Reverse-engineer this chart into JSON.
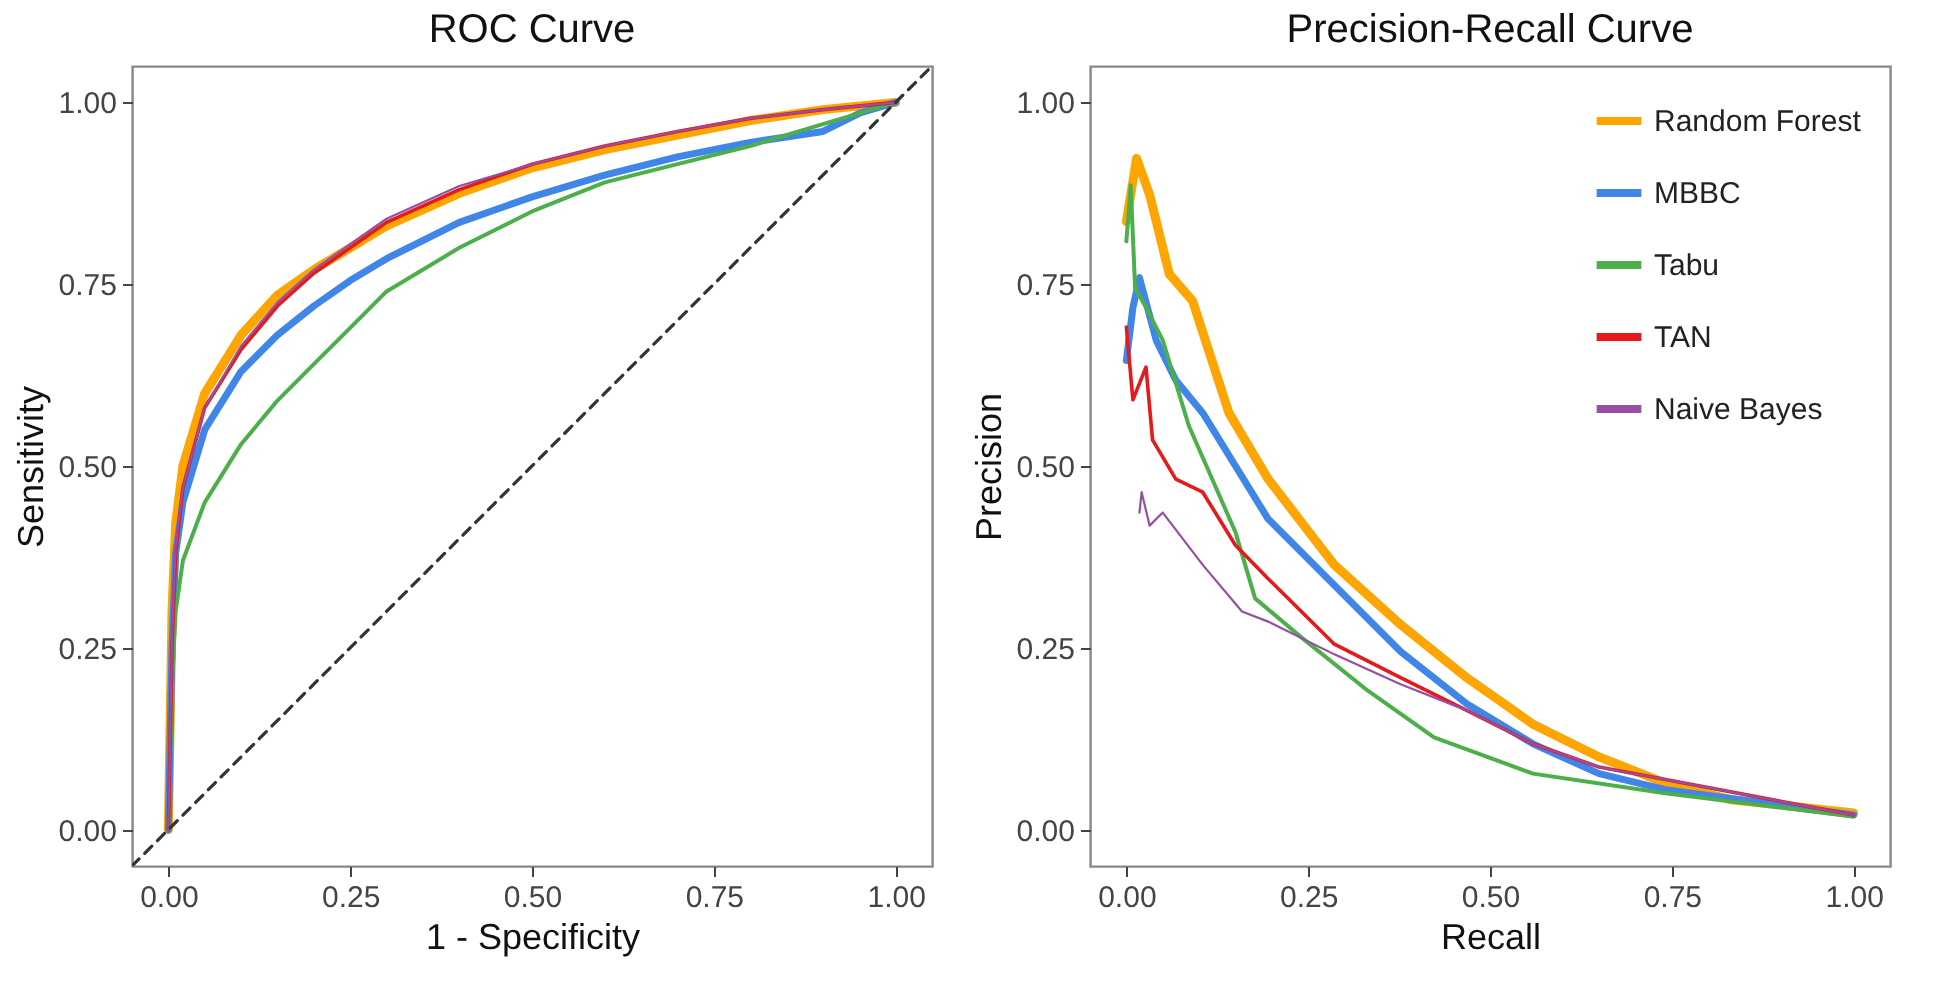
{
  "chart_data": [
    {
      "type": "line",
      "title": "ROC Curve",
      "xlabel": "1 - Specificity",
      "ylabel": "Sensitivity",
      "xlim": [
        -0.05,
        1.05
      ],
      "ylim": [
        -0.05,
        1.05
      ],
      "xticks": [
        {
          "value": 0,
          "label": "0.00"
        },
        {
          "value": 0.25,
          "label": "0.25"
        },
        {
          "value": 0.5,
          "label": "0.50"
        },
        {
          "value": 0.75,
          "label": "0.75"
        },
        {
          "value": 1,
          "label": "1.00"
        }
      ],
      "yticks": [
        {
          "value": 0,
          "label": "0.00"
        },
        {
          "value": 0.25,
          "label": "0.25"
        },
        {
          "value": 0.5,
          "label": "0.50"
        },
        {
          "value": 0.75,
          "label": "0.75"
        },
        {
          "value": 1,
          "label": "1.00"
        }
      ],
      "grid": false,
      "legend": false,
      "series": [
        {
          "color": "#ffa500",
          "x": [
            0,
            0.005,
            0.01,
            0.02,
            0.05,
            0.1,
            0.15,
            0.2,
            0.25,
            0.3,
            0.4,
            0.5,
            0.6,
            0.7,
            0.8,
            0.9,
            1
          ],
          "values": [
            0,
            0.3,
            0.42,
            0.5,
            0.6,
            0.68,
            0.735,
            0.77,
            0.8,
            0.83,
            0.875,
            0.91,
            0.935,
            0.955,
            0.975,
            0.99,
            1
          ]
        },
        {
          "color": "#3f86e8",
          "x": [
            0,
            0.005,
            0.01,
            0.02,
            0.05,
            0.1,
            0.15,
            0.2,
            0.25,
            0.3,
            0.4,
            0.5,
            0.6,
            0.7,
            0.8,
            0.9,
            0.95,
            1
          ],
          "values": [
            0,
            0.25,
            0.38,
            0.45,
            0.55,
            0.63,
            0.68,
            0.72,
            0.755,
            0.785,
            0.835,
            0.87,
            0.9,
            0.925,
            0.945,
            0.96,
            0.985,
            1
          ]
        },
        {
          "color": "#4daf4a",
          "x": [
            0,
            0.005,
            0.01,
            0.02,
            0.05,
            0.1,
            0.15,
            0.2,
            0.25,
            0.3,
            0.4,
            0.5,
            0.6,
            0.7,
            0.8,
            0.9,
            1
          ],
          "values": [
            0,
            0.2,
            0.3,
            0.37,
            0.45,
            0.53,
            0.59,
            0.64,
            0.69,
            0.74,
            0.8,
            0.85,
            0.89,
            0.915,
            0.94,
            0.97,
            1
          ]
        },
        {
          "color": "#e41a1c",
          "x": [
            0,
            0.005,
            0.01,
            0.02,
            0.05,
            0.1,
            0.15,
            0.2,
            0.25,
            0.3,
            0.4,
            0.5,
            0.6,
            0.7,
            0.8,
            0.9,
            1
          ],
          "values": [
            0,
            0.25,
            0.38,
            0.47,
            0.58,
            0.66,
            0.72,
            0.765,
            0.8,
            0.835,
            0.88,
            0.915,
            0.94,
            0.96,
            0.978,
            0.99,
            1
          ]
        },
        {
          "color": "#984ea3",
          "x": [
            0,
            0.005,
            0.01,
            0.02,
            0.05,
            0.1,
            0.15,
            0.2,
            0.25,
            0.3,
            0.4,
            0.5,
            0.6,
            0.7,
            0.8,
            0.9,
            1
          ],
          "values": [
            0,
            0.26,
            0.39,
            0.47,
            0.58,
            0.665,
            0.725,
            0.77,
            0.805,
            0.84,
            0.885,
            0.915,
            0.94,
            0.96,
            0.978,
            0.99,
            1
          ]
        },
        {
          "color": "#333333",
          "line_style": "dashed",
          "x": [
            -0.05,
            1.05
          ],
          "values": [
            -0.05,
            1.05
          ]
        }
      ]
    },
    {
      "type": "line",
      "title": "Precision-Recall Curve",
      "xlabel": "Recall",
      "ylabel": "Precision",
      "xlim": [
        -0.05,
        1.05
      ],
      "ylim": [
        -0.05,
        1.05
      ],
      "xticks": [
        {
          "value": 0,
          "label": "0.00"
        },
        {
          "value": 0.25,
          "label": "0.25"
        },
        {
          "value": 0.5,
          "label": "0.50"
        },
        {
          "value": 0.75,
          "label": "0.75"
        },
        {
          "value": 1,
          "label": "1.00"
        }
      ],
      "yticks": [
        {
          "value": 0,
          "label": "0.00"
        },
        {
          "value": 0.25,
          "label": "0.25"
        },
        {
          "value": 0.5,
          "label": "0.50"
        },
        {
          "value": 0.75,
          "label": "0.75"
        },
        {
          "value": 1,
          "label": "1.00"
        }
      ],
      "grid": false,
      "legend": "top right",
      "series": [
        {
          "name": "Random Forest",
          "color": "#ffa500",
          "x": [
            0,
            0.014,
            0.032,
            0.059,
            0.091,
            0.141,
            0.195,
            0.286,
            0.377,
            0.468,
            0.559,
            0.65,
            0.741,
            0.832,
            1
          ],
          "values": [
            0.836,
            0.923,
            0.873,
            0.764,
            0.727,
            0.573,
            0.482,
            0.364,
            0.282,
            0.209,
            0.145,
            0.1,
            0.064,
            0.041,
            0.023
          ]
        },
        {
          "name": "MBBC",
          "color": "#3f86e8",
          "x": [
            0,
            0.009,
            0.018,
            0.041,
            0.068,
            0.105,
            0.15,
            0.195,
            0.286,
            0.377,
            0.468,
            0.559,
            0.65,
            0.741,
            1
          ],
          "values": [
            0.645,
            0.718,
            0.759,
            0.673,
            0.618,
            0.573,
            0.5,
            0.427,
            0.336,
            0.245,
            0.173,
            0.118,
            0.077,
            0.055,
            0.02
          ]
        },
        {
          "name": "Tabu",
          "color": "#4daf4a",
          "x": [
            0,
            0.006,
            0.012,
            0.027,
            0.05,
            0.086,
            0.15,
            0.177,
            0.241,
            0.332,
            0.423,
            0.559,
            0.741,
            1
          ],
          "values": [
            0.809,
            0.886,
            0.745,
            0.718,
            0.673,
            0.555,
            0.409,
            0.318,
            0.264,
            0.191,
            0.127,
            0.077,
            0.05,
            0.018
          ]
        },
        {
          "name": "TAN",
          "color": "#e41a1c",
          "x": [
            0,
            0.009,
            0.027,
            0.036,
            0.068,
            0.105,
            0.15,
            0.195,
            0.286,
            0.377,
            0.468,
            0.559,
            0.65,
            1
          ],
          "values": [
            0.691,
            0.591,
            0.636,
            0.536,
            0.482,
            0.464,
            0.391,
            0.345,
            0.255,
            0.209,
            0.164,
            0.118,
            0.086,
            0.02
          ]
        },
        {
          "name": "Naive Bayes",
          "color": "#984ea3",
          "x": [
            0.018,
            0.021,
            0.032,
            0.05,
            0.105,
            0.159,
            0.195,
            0.286,
            0.377,
            0.468,
            0.559,
            0.65,
            1
          ],
          "values": [
            0.436,
            0.464,
            0.418,
            0.436,
            0.364,
            0.3,
            0.286,
            0.241,
            0.2,
            0.164,
            0.118,
            0.086,
            0.02
          ]
        }
      ]
    }
  ]
}
